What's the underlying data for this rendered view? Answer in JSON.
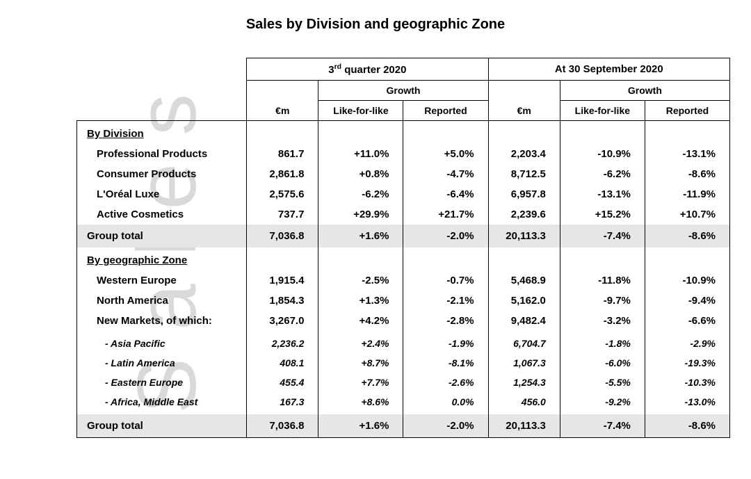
{
  "title": "Sales by Division and geographic Zone",
  "watermark": "Sales",
  "periods": {
    "q3": "3<sup>rd</sup> quarter 2020",
    "ytd": "At 30 September 2020"
  },
  "column_labels": {
    "growth": "Growth",
    "euro": "€m",
    "lfl": "Like-for-like",
    "reported": "Reported"
  },
  "sections": {
    "division_header": "By Division",
    "zone_header": "By geographic Zone",
    "group_total": "Group total"
  },
  "division_rows": [
    {
      "label": "Professional Products",
      "q3_eur": "861.7",
      "q3_lfl": "+11.0%",
      "q3_rep": "+5.0%",
      "ytd_eur": "2,203.4",
      "ytd_lfl": "-10.9%",
      "ytd_rep": "-13.1%"
    },
    {
      "label": "Consumer Products",
      "q3_eur": "2,861.8",
      "q3_lfl": "+0.8%",
      "q3_rep": "-4.7%",
      "ytd_eur": "8,712.5",
      "ytd_lfl": "-6.2%",
      "ytd_rep": "-8.6%"
    },
    {
      "label": "L'Oréal Luxe",
      "q3_eur": "2,575.6",
      "q3_lfl": "-6.2%",
      "q3_rep": "-6.4%",
      "ytd_eur": "6,957.8",
      "ytd_lfl": "-13.1%",
      "ytd_rep": "-11.9%"
    },
    {
      "label": "Active Cosmetics",
      "q3_eur": "737.7",
      "q3_lfl": "+29.9%",
      "q3_rep": "+21.7%",
      "ytd_eur": "2,239.6",
      "ytd_lfl": "+15.2%",
      "ytd_rep": "+10.7%"
    }
  ],
  "division_total": {
    "q3_eur": "7,036.8",
    "q3_lfl": "+1.6%",
    "q3_rep": "-2.0%",
    "ytd_eur": "20,113.3",
    "ytd_lfl": "-7.4%",
    "ytd_rep": "-8.6%"
  },
  "zone_rows": [
    {
      "label": "Western Europe",
      "q3_eur": "1,915.4",
      "q3_lfl": "-2.5%",
      "q3_rep": "-0.7%",
      "ytd_eur": "5,468.9",
      "ytd_lfl": "-11.8%",
      "ytd_rep": "-10.9%"
    },
    {
      "label": "North America",
      "q3_eur": "1,854.3",
      "q3_lfl": "+1.3%",
      "q3_rep": "-2.1%",
      "ytd_eur": "5,162.0",
      "ytd_lfl": "-9.7%",
      "ytd_rep": "-9.4%"
    },
    {
      "label": "New Markets, of which:",
      "q3_eur": "3,267.0",
      "q3_lfl": "+4.2%",
      "q3_rep": "-2.8%",
      "ytd_eur": "9,482.4",
      "ytd_lfl": "-3.2%",
      "ytd_rep": "-6.6%"
    }
  ],
  "zone_sub_rows": [
    {
      "label": "-   Asia Pacific",
      "q3_eur": "2,236.2",
      "q3_lfl": "+2.4%",
      "q3_rep": "-1.9%",
      "ytd_eur": "6,704.7",
      "ytd_lfl": "-1.8%",
      "ytd_rep": "-2.9%"
    },
    {
      "label": "-   Latin America",
      "q3_eur": "408.1",
      "q3_lfl": "+8.7%",
      "q3_rep": "-8.1%",
      "ytd_eur": "1,067.3",
      "ytd_lfl": "-6.0%",
      "ytd_rep": "-19.3%"
    },
    {
      "label": "-   Eastern Europe",
      "q3_eur": "455.4",
      "q3_lfl": "+7.7%",
      "q3_rep": "-2.6%",
      "ytd_eur": "1,254.3",
      "ytd_lfl": "-5.5%",
      "ytd_rep": "-10.3%"
    },
    {
      "label": "-   Africa, Middle East",
      "q3_eur": "167.3",
      "q3_lfl": "+8.6%",
      "q3_rep": "0.0%",
      "ytd_eur": "456.0",
      "ytd_lfl": "-9.2%",
      "ytd_rep": "-13.0%"
    }
  ],
  "zone_total": {
    "q3_eur": "7,036.8",
    "q3_lfl": "+1.6%",
    "q3_rep": "-2.0%",
    "ytd_eur": "20,113.3",
    "ytd_lfl": "-7.4%",
    "ytd_rep": "-8.6%"
  },
  "styling": {
    "background_color": "#ffffff",
    "watermark_color": "#d9d9d9",
    "total_row_bg": "#e6e6e6",
    "border_color": "#000000",
    "title_fontsize": 20,
    "body_fontsize": 15,
    "sub_fontsize": 14
  }
}
